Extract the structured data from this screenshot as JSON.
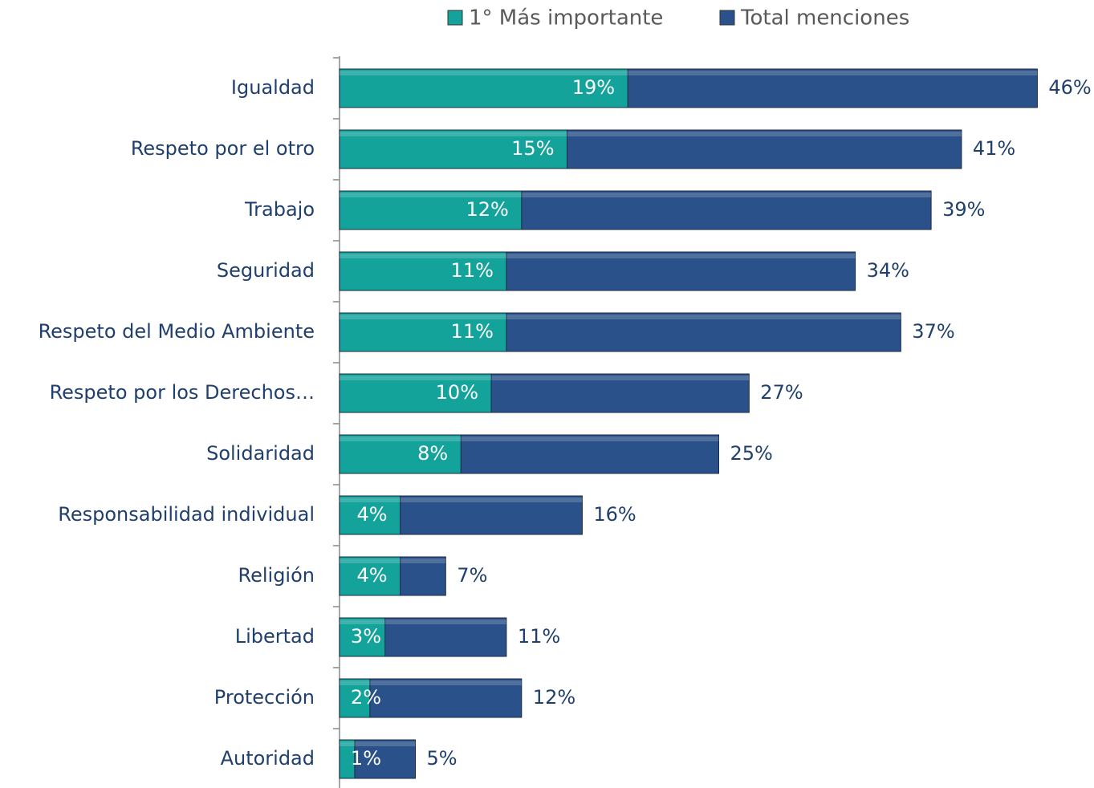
{
  "chart_data": {
    "type": "bar",
    "orientation": "horizontal",
    "overlap": true,
    "categories": [
      "Igualdad",
      "Respeto por el otro",
      "Trabajo",
      "Seguridad",
      "Respeto del Medio Ambiente",
      "Respeto por los Derechos…",
      "Solidaridad",
      "Responsabilidad individual",
      "Religión",
      "Libertad",
      "Protección",
      "Autoridad"
    ],
    "series": [
      {
        "name": "1° Más importante",
        "color": "#14a39b",
        "values": [
          19,
          15,
          12,
          11,
          11,
          10,
          8,
          4,
          4,
          3,
          2,
          1
        ],
        "value_labels": [
          "19%",
          "15%",
          "12%",
          "11%",
          "11%",
          "10%",
          "8%",
          "4%",
          "4%",
          "3%",
          "2%",
          "1%"
        ]
      },
      {
        "name": "Total menciones",
        "color": "#2a5189",
        "values": [
          46,
          41,
          39,
          34,
          37,
          27,
          25,
          16,
          7,
          11,
          12,
          5
        ],
        "value_labels": [
          "46%",
          "41%",
          "39%",
          "34%",
          "37%",
          "27%",
          "25%",
          "16%",
          "7%",
          "11%",
          "12%",
          "5%"
        ]
      }
    ],
    "xlim": [
      0,
      48
    ],
    "legend": "top"
  }
}
